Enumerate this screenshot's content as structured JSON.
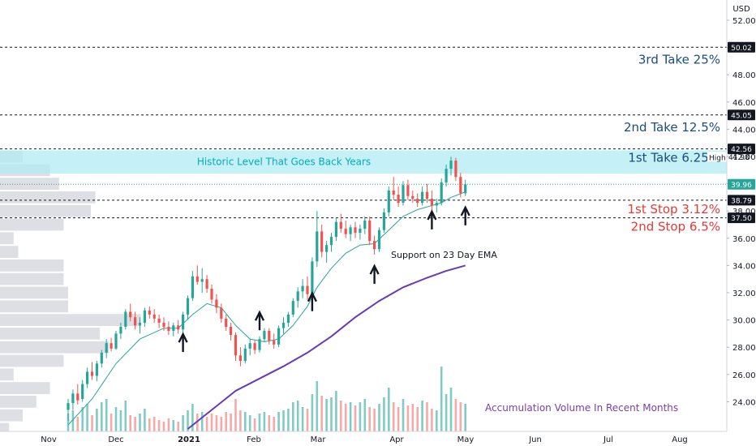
{
  "chart_data": {
    "type": "candlestick",
    "currency": "USD",
    "y_ticks": [
      "52.00",
      "50.00",
      "48.00",
      "46.00",
      "44.00",
      "42.00",
      "40.00",
      "38.00",
      "36.00",
      "34.00",
      "32.00",
      "30.00",
      "28.00",
      "26.00",
      "24.00"
    ],
    "ylim": [
      21.8,
      53.2
    ],
    "x_ticks": [
      "Nov",
      "Dec",
      "2021",
      "Feb",
      "Mar",
      "Apr",
      "May",
      "Jun",
      "Jul",
      "Aug"
    ],
    "levels": [
      {
        "value": 50.02,
        "label": "50.02",
        "annotation": "3rd Take 25%",
        "kind": "take"
      },
      {
        "value": 45.05,
        "label": "45.05",
        "annotation": "2nd Take 12.5%",
        "kind": "take"
      },
      {
        "value": 42.56,
        "label": "42.56",
        "annotation": "1st Take 6.25%",
        "kind": "take"
      },
      {
        "value": 38.79,
        "label": "38.79",
        "annotation": "1st Stop 3.12%",
        "kind": "stop"
      },
      {
        "value": 37.5,
        "label": "37.50",
        "annotation": "2nd Stop 6.5%",
        "kind": "stop"
      }
    ],
    "high_marker": {
      "label": "High",
      "value": 41.98,
      "text": "41.98"
    },
    "last_price": {
      "value": 39.96,
      "text": "39.96"
    },
    "zone": {
      "from": 40.75,
      "to": 42.45,
      "label": "Historic Level That Goes Back Years"
    },
    "annotations": {
      "support": "Support on 23 Day EMA",
      "volume": "Accumulation Volume In Recent Months"
    },
    "candles": [
      {
        "d": 0,
        "o": 23.4,
        "h": 24.2,
        "l": 22.6,
        "c": 23.9
      },
      {
        "d": 2,
        "o": 23.9,
        "h": 24.9,
        "l": 23.4,
        "c": 24.6
      },
      {
        "d": 4,
        "o": 24.6,
        "h": 25.3,
        "l": 23.8,
        "c": 24.1
      },
      {
        "d": 6,
        "o": 24.2,
        "h": 25.6,
        "l": 24.0,
        "c": 25.3
      },
      {
        "d": 8,
        "o": 25.3,
        "h": 26.5,
        "l": 25.0,
        "c": 26.2
      },
      {
        "d": 10,
        "o": 26.2,
        "h": 26.9,
        "l": 25.6,
        "c": 25.9
      },
      {
        "d": 12,
        "o": 25.9,
        "h": 27.0,
        "l": 25.5,
        "c": 26.8
      },
      {
        "d": 14,
        "o": 26.8,
        "h": 27.8,
        "l": 26.5,
        "c": 27.6
      },
      {
        "d": 16,
        "o": 27.6,
        "h": 28.6,
        "l": 27.2,
        "c": 28.3
      },
      {
        "d": 18,
        "o": 28.3,
        "h": 28.7,
        "l": 27.7,
        "c": 27.9
      },
      {
        "d": 20,
        "o": 27.9,
        "h": 29.2,
        "l": 27.8,
        "c": 29.0
      },
      {
        "d": 22,
        "o": 29.0,
        "h": 29.8,
        "l": 28.6,
        "c": 29.5
      },
      {
        "d": 24,
        "o": 29.5,
        "h": 30.8,
        "l": 29.3,
        "c": 30.6
      },
      {
        "d": 26,
        "o": 30.6,
        "h": 31.2,
        "l": 29.9,
        "c": 30.2
      },
      {
        "d": 28,
        "o": 30.2,
        "h": 30.6,
        "l": 29.3,
        "c": 29.6
      },
      {
        "d": 30,
        "o": 29.6,
        "h": 30.2,
        "l": 29.0,
        "c": 29.8
      },
      {
        "d": 32,
        "o": 29.8,
        "h": 30.9,
        "l": 29.5,
        "c": 30.7
      },
      {
        "d": 34,
        "o": 30.7,
        "h": 31.0,
        "l": 30.1,
        "c": 30.4
      },
      {
        "d": 36,
        "o": 30.4,
        "h": 30.8,
        "l": 29.8,
        "c": 30.1
      },
      {
        "d": 38,
        "o": 30.1,
        "h": 30.4,
        "l": 29.4,
        "c": 29.8
      },
      {
        "d": 40,
        "o": 29.8,
        "h": 30.2,
        "l": 29.2,
        "c": 29.5
      },
      {
        "d": 42,
        "o": 29.5,
        "h": 29.9,
        "l": 28.9,
        "c": 29.2
      },
      {
        "d": 44,
        "o": 29.2,
        "h": 29.8,
        "l": 28.8,
        "c": 29.6
      },
      {
        "d": 46,
        "o": 29.6,
        "h": 30.0,
        "l": 29.0,
        "c": 29.3
      },
      {
        "d": 48,
        "o": 29.3,
        "h": 30.6,
        "l": 29.0,
        "c": 30.4
      },
      {
        "d": 50,
        "o": 30.4,
        "h": 31.8,
        "l": 30.0,
        "c": 31.6
      },
      {
        "d": 52,
        "o": 31.6,
        "h": 33.6,
        "l": 31.4,
        "c": 33.2
      },
      {
        "d": 54,
        "o": 33.2,
        "h": 34.0,
        "l": 32.6,
        "c": 32.8
      },
      {
        "d": 56,
        "o": 32.8,
        "h": 33.8,
        "l": 32.0,
        "c": 33.0
      },
      {
        "d": 58,
        "o": 33.0,
        "h": 33.3,
        "l": 32.0,
        "c": 32.3
      },
      {
        "d": 60,
        "o": 32.3,
        "h": 32.6,
        "l": 31.2,
        "c": 31.5
      },
      {
        "d": 62,
        "o": 31.5,
        "h": 31.9,
        "l": 30.5,
        "c": 30.9
      },
      {
        "d": 64,
        "o": 30.9,
        "h": 31.2,
        "l": 29.8,
        "c": 30.1
      },
      {
        "d": 66,
        "o": 30.1,
        "h": 30.4,
        "l": 29.2,
        "c": 29.5
      },
      {
        "d": 68,
        "o": 29.5,
        "h": 29.8,
        "l": 28.5,
        "c": 28.9
      },
      {
        "d": 70,
        "o": 28.9,
        "h": 29.1,
        "l": 27.0,
        "c": 27.4
      },
      {
        "d": 72,
        "o": 27.4,
        "h": 28.0,
        "l": 26.6,
        "c": 27.0
      },
      {
        "d": 74,
        "o": 27.0,
        "h": 28.2,
        "l": 26.8,
        "c": 27.9
      },
      {
        "d": 76,
        "o": 27.9,
        "h": 28.6,
        "l": 27.4,
        "c": 28.3
      },
      {
        "d": 78,
        "o": 28.3,
        "h": 28.5,
        "l": 27.5,
        "c": 27.8
      },
      {
        "d": 80,
        "o": 27.8,
        "h": 28.8,
        "l": 27.6,
        "c": 28.6
      },
      {
        "d": 82,
        "o": 28.6,
        "h": 29.4,
        "l": 28.4,
        "c": 29.2
      },
      {
        "d": 84,
        "o": 29.2,
        "h": 29.4,
        "l": 28.2,
        "c": 28.5
      },
      {
        "d": 86,
        "o": 28.5,
        "h": 29.0,
        "l": 27.9,
        "c": 28.2
      },
      {
        "d": 88,
        "o": 28.2,
        "h": 29.6,
        "l": 28.0,
        "c": 29.4
      },
      {
        "d": 90,
        "o": 29.4,
        "h": 30.2,
        "l": 29.0,
        "c": 29.8
      },
      {
        "d": 92,
        "o": 29.8,
        "h": 30.6,
        "l": 29.5,
        "c": 30.4
      },
      {
        "d": 94,
        "o": 30.4,
        "h": 31.6,
        "l": 30.2,
        "c": 31.4
      },
      {
        "d": 96,
        "o": 31.4,
        "h": 32.4,
        "l": 30.9,
        "c": 32.1
      },
      {
        "d": 98,
        "o": 32.1,
        "h": 33.0,
        "l": 31.6,
        "c": 32.5
      },
      {
        "d": 100,
        "o": 32.5,
        "h": 33.2,
        "l": 31.5,
        "c": 31.9
      },
      {
        "d": 102,
        "o": 31.9,
        "h": 34.6,
        "l": 31.7,
        "c": 34.3
      },
      {
        "d": 104,
        "o": 34.3,
        "h": 38.0,
        "l": 33.9,
        "c": 36.5
      },
      {
        "d": 106,
        "o": 36.5,
        "h": 37.0,
        "l": 34.6,
        "c": 35.0
      },
      {
        "d": 108,
        "o": 35.0,
        "h": 35.8,
        "l": 34.2,
        "c": 35.5
      },
      {
        "d": 110,
        "o": 35.5,
        "h": 36.4,
        "l": 35.0,
        "c": 36.1
      },
      {
        "d": 112,
        "o": 36.1,
        "h": 37.5,
        "l": 35.8,
        "c": 37.2
      },
      {
        "d": 114,
        "o": 37.2,
        "h": 37.8,
        "l": 36.4,
        "c": 36.7
      },
      {
        "d": 116,
        "o": 36.7,
        "h": 37.3,
        "l": 36.0,
        "c": 36.3
      },
      {
        "d": 118,
        "o": 36.3,
        "h": 37.0,
        "l": 35.8,
        "c": 36.8
      },
      {
        "d": 120,
        "o": 36.8,
        "h": 37.2,
        "l": 36.0,
        "c": 36.4
      },
      {
        "d": 122,
        "o": 36.4,
        "h": 37.0,
        "l": 35.9,
        "c": 36.7
      },
      {
        "d": 124,
        "o": 36.7,
        "h": 37.6,
        "l": 36.3,
        "c": 37.3
      },
      {
        "d": 126,
        "o": 37.3,
        "h": 37.6,
        "l": 35.5,
        "c": 35.8
      },
      {
        "d": 128,
        "o": 35.8,
        "h": 36.2,
        "l": 34.8,
        "c": 35.2
      },
      {
        "d": 130,
        "o": 35.2,
        "h": 36.8,
        "l": 35.0,
        "c": 36.6
      },
      {
        "d": 132,
        "o": 36.6,
        "h": 38.2,
        "l": 36.4,
        "c": 37.9
      },
      {
        "d": 134,
        "o": 37.9,
        "h": 39.8,
        "l": 37.6,
        "c": 39.5
      },
      {
        "d": 136,
        "o": 39.5,
        "h": 40.5,
        "l": 38.8,
        "c": 39.2
      },
      {
        "d": 138,
        "o": 39.2,
        "h": 39.8,
        "l": 38.3,
        "c": 38.6
      },
      {
        "d": 140,
        "o": 38.6,
        "h": 40.2,
        "l": 38.4,
        "c": 39.9
      },
      {
        "d": 142,
        "o": 39.9,
        "h": 40.3,
        "l": 38.8,
        "c": 39.1
      },
      {
        "d": 144,
        "o": 39.1,
        "h": 39.5,
        "l": 38.6,
        "c": 38.9
      },
      {
        "d": 146,
        "o": 38.9,
        "h": 39.3,
        "l": 38.3,
        "c": 38.6
      },
      {
        "d": 148,
        "o": 38.6,
        "h": 39.8,
        "l": 38.4,
        "c": 39.4
      },
      {
        "d": 150,
        "o": 39.4,
        "h": 40.0,
        "l": 38.6,
        "c": 38.9
      },
      {
        "d": 152,
        "o": 38.9,
        "h": 39.5,
        "l": 38.0,
        "c": 38.4
      },
      {
        "d": 154,
        "o": 38.4,
        "h": 38.9,
        "l": 37.9,
        "c": 38.6
      },
      {
        "d": 156,
        "o": 38.6,
        "h": 40.4,
        "l": 38.4,
        "c": 40.1
      },
      {
        "d": 158,
        "o": 40.1,
        "h": 41.4,
        "l": 39.8,
        "c": 41.1
      },
      {
        "d": 160,
        "o": 41.1,
        "h": 41.98,
        "l": 40.6,
        "c": 41.7
      },
      {
        "d": 162,
        "o": 41.7,
        "h": 41.9,
        "l": 40.2,
        "c": 40.5
      },
      {
        "d": 164,
        "o": 40.5,
        "h": 40.8,
        "l": 39.0,
        "c": 39.3
      },
      {
        "d": 166,
        "o": 39.3,
        "h": 40.3,
        "l": 39.1,
        "c": 39.96
      }
    ],
    "ema23": [
      [
        0,
        22.3
      ],
      [
        10,
        24.2
      ],
      [
        20,
        26.8
      ],
      [
        30,
        28.6
      ],
      [
        40,
        29.4
      ],
      [
        46,
        29.4
      ],
      [
        52,
        30.4
      ],
      [
        58,
        31.2
      ],
      [
        64,
        30.9
      ],
      [
        70,
        29.6
      ],
      [
        76,
        28.6
      ],
      [
        82,
        28.4
      ],
      [
        88,
        28.6
      ],
      [
        94,
        29.6
      ],
      [
        100,
        31.0
      ],
      [
        104,
        32.4
      ],
      [
        110,
        33.8
      ],
      [
        116,
        34.9
      ],
      [
        122,
        35.5
      ],
      [
        128,
        35.6
      ],
      [
        134,
        36.6
      ],
      [
        140,
        37.6
      ],
      [
        146,
        38.1
      ],
      [
        152,
        38.4
      ],
      [
        156,
        38.6
      ],
      [
        160,
        39.0
      ],
      [
        166,
        39.4
      ]
    ],
    "sma200": [
      [
        50,
        22.0
      ],
      [
        60,
        23.4
      ],
      [
        70,
        24.8
      ],
      [
        80,
        25.7
      ],
      [
        90,
        26.6
      ],
      [
        100,
        27.6
      ],
      [
        110,
        28.8
      ],
      [
        120,
        30.2
      ],
      [
        130,
        31.4
      ],
      [
        140,
        32.4
      ],
      [
        150,
        33.1
      ],
      [
        158,
        33.6
      ],
      [
        166,
        34.0
      ]
    ],
    "volume": [
      [
        0,
        22,
        1
      ],
      [
        2,
        26,
        1
      ],
      [
        4,
        18,
        0
      ],
      [
        6,
        30,
        1
      ],
      [
        8,
        34,
        1
      ],
      [
        10,
        20,
        0
      ],
      [
        12,
        28,
        1
      ],
      [
        14,
        36,
        1
      ],
      [
        16,
        40,
        1
      ],
      [
        18,
        22,
        0
      ],
      [
        20,
        30,
        1
      ],
      [
        22,
        26,
        1
      ],
      [
        24,
        38,
        1
      ],
      [
        26,
        20,
        0
      ],
      [
        28,
        18,
        0
      ],
      [
        30,
        22,
        1
      ],
      [
        32,
        28,
        1
      ],
      [
        34,
        16,
        0
      ],
      [
        36,
        18,
        0
      ],
      [
        38,
        14,
        0
      ],
      [
        40,
        12,
        0
      ],
      [
        42,
        16,
        0
      ],
      [
        44,
        14,
        1
      ],
      [
        46,
        12,
        0
      ],
      [
        48,
        20,
        1
      ],
      [
        50,
        26,
        1
      ],
      [
        52,
        34,
        1
      ],
      [
        54,
        22,
        0
      ],
      [
        56,
        24,
        1
      ],
      [
        58,
        18,
        0
      ],
      [
        60,
        22,
        0
      ],
      [
        62,
        20,
        0
      ],
      [
        64,
        18,
        0
      ],
      [
        66,
        24,
        0
      ],
      [
        68,
        22,
        0
      ],
      [
        70,
        40,
        0
      ],
      [
        72,
        26,
        0
      ],
      [
        74,
        24,
        1
      ],
      [
        76,
        20,
        1
      ],
      [
        78,
        16,
        0
      ],
      [
        80,
        22,
        1
      ],
      [
        82,
        24,
        1
      ],
      [
        84,
        20,
        0
      ],
      [
        86,
        18,
        0
      ],
      [
        88,
        24,
        1
      ],
      [
        90,
        26,
        1
      ],
      [
        92,
        28,
        1
      ],
      [
        94,
        36,
        1
      ],
      [
        96,
        38,
        1
      ],
      [
        98,
        30,
        1
      ],
      [
        100,
        28,
        0
      ],
      [
        102,
        46,
        1
      ],
      [
        104,
        62,
        1
      ],
      [
        106,
        44,
        0
      ],
      [
        108,
        40,
        1
      ],
      [
        110,
        42,
        1
      ],
      [
        112,
        50,
        1
      ],
      [
        114,
        38,
        0
      ],
      [
        116,
        34,
        0
      ],
      [
        118,
        36,
        1
      ],
      [
        120,
        32,
        0
      ],
      [
        122,
        36,
        1
      ],
      [
        124,
        40,
        1
      ],
      [
        126,
        30,
        0
      ],
      [
        128,
        28,
        0
      ],
      [
        130,
        34,
        1
      ],
      [
        132,
        42,
        1
      ],
      [
        134,
        54,
        1
      ],
      [
        136,
        36,
        0
      ],
      [
        138,
        30,
        0
      ],
      [
        140,
        40,
        1
      ],
      [
        142,
        32,
        0
      ],
      [
        144,
        34,
        0
      ],
      [
        146,
        30,
        0
      ],
      [
        148,
        38,
        1
      ],
      [
        150,
        36,
        0
      ],
      [
        152,
        28,
        0
      ],
      [
        154,
        26,
        1
      ],
      [
        156,
        80,
        1
      ],
      [
        158,
        46,
        1
      ],
      [
        160,
        54,
        1
      ],
      [
        162,
        40,
        0
      ],
      [
        164,
        36,
        0
      ],
      [
        166,
        34,
        1
      ]
    ],
    "volume_profile": [
      [
        22.0,
        0.02
      ],
      [
        23.0,
        0.05
      ],
      [
        24.0,
        0.08
      ],
      [
        25.0,
        0.11
      ],
      [
        26.0,
        0.03
      ],
      [
        27.0,
        0.14
      ],
      [
        28.0,
        0.24
      ],
      [
        29.0,
        0.22
      ],
      [
        30.0,
        0.31
      ],
      [
        31.0,
        0.15
      ],
      [
        32.0,
        0.15
      ],
      [
        33.0,
        0.14
      ],
      [
        34.0,
        0.14
      ],
      [
        35.0,
        0.04
      ],
      [
        36.0,
        0.03
      ],
      [
        37.0,
        0.14
      ],
      [
        38.0,
        0.2
      ],
      [
        39.0,
        0.21
      ],
      [
        40.0,
        0.13
      ],
      [
        41.0,
        0.11
      ],
      [
        42.0,
        0.05
      ]
    ],
    "arrows": [
      [
        48,
        28.6
      ],
      [
        80,
        30.2
      ],
      [
        102,
        31.6
      ],
      [
        128,
        33.6
      ],
      [
        152,
        37.6
      ],
      [
        166,
        37.9
      ]
    ]
  }
}
